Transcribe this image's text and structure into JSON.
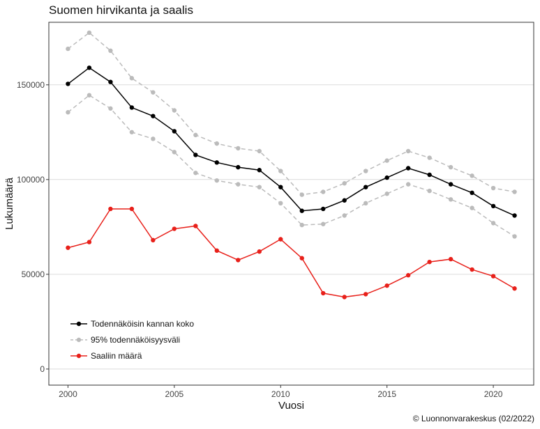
{
  "chart_data": {
    "type": "line",
    "title": "Suomen hirvikanta ja saalis",
    "xlabel": "Vuosi",
    "ylabel": "Lukumäärä",
    "xlim": [
      1999.1,
      2021.9
    ],
    "ylim": [
      -8500,
      183000
    ],
    "x_ticks": [
      2000,
      2005,
      2010,
      2015,
      2020
    ],
    "y_ticks": [
      0,
      50000,
      100000,
      150000
    ],
    "grid": "horizontal",
    "legend_position": "bottom-left",
    "x": [
      2000,
      2001,
      2002,
      2003,
      2004,
      2005,
      2006,
      2007,
      2008,
      2009,
      2010,
      2011,
      2012,
      2013,
      2014,
      2015,
      2016,
      2017,
      2018,
      2019,
      2020,
      2021
    ],
    "series": [
      {
        "name": "Todennäköisin kannan koko",
        "color": "#000000",
        "dash": "solid",
        "values": [
          150500,
          159000,
          151500,
          138000,
          133500,
          125500,
          113000,
          109000,
          106500,
          105000,
          96000,
          83500,
          84500,
          89000,
          96000,
          101000,
          106000,
          102500,
          97500,
          93000,
          86000,
          81000
        ]
      },
      {
        "name": "95% todennäköisyysväli",
        "color": "#bbbbbb",
        "dash": "dashed",
        "values": [
          169000,
          177500,
          168000,
          153500,
          146000,
          136500,
          123500,
          119000,
          116500,
          115000,
          104500,
          92000,
          93500,
          98000,
          104500,
          110000,
          115000,
          111500,
          106500,
          102000,
          95500,
          93500
        ]
      },
      {
        "name": "95% todennäköisyysväli",
        "color": "#bbbbbb",
        "dash": "dashed",
        "legend": false,
        "values": [
          135500,
          144500,
          137500,
          125000,
          121500,
          114500,
          103500,
          99500,
          97500,
          96000,
          87500,
          76000,
          76500,
          81000,
          87500,
          92500,
          97500,
          94000,
          89500,
          85000,
          77000,
          70000
        ]
      },
      {
        "name": "Saaliin määrä",
        "color": "#e8201a",
        "dash": "solid",
        "values": [
          64000,
          67000,
          84500,
          84500,
          68000,
          74000,
          75500,
          62500,
          57500,
          62000,
          68500,
          58500,
          40000,
          38000,
          39500,
          44000,
          49500,
          56500,
          58000,
          52500,
          49000,
          42500
        ]
      }
    ]
  },
  "credit": "© Luonnonvarakeskus (02/2022)"
}
